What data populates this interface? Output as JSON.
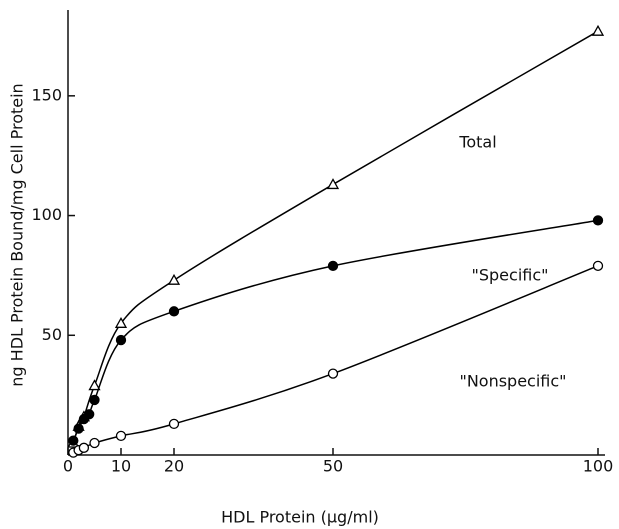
{
  "chart_data": {
    "type": "line",
    "x_label": "HDL Protein (μg/ml)",
    "y_label": "ng HDL Protein Bound/mg Cell Protein",
    "xlim": [
      0,
      100
    ],
    "ylim": [
      0,
      180
    ],
    "xticks": [
      0,
      10,
      20,
      50,
      100
    ],
    "yticks": [
      50,
      100,
      150
    ],
    "series": [
      {
        "name": "Total",
        "color": "#000000",
        "marker": "open-triangle",
        "x": [
          1,
          2,
          3,
          5,
          10,
          20,
          50,
          100
        ],
        "values": [
          5,
          12,
          16,
          29,
          55,
          73,
          113,
          177
        ]
      },
      {
        "name": "\"Specific\"",
        "color": "#000000",
        "marker": "filled-circle",
        "x": [
          1,
          2,
          3,
          4,
          5,
          10,
          20,
          50,
          100
        ],
        "values": [
          6,
          11,
          15,
          17,
          23,
          48,
          60,
          79,
          98
        ]
      },
      {
        "name": "\"Nonspecific\"",
        "color": "#000000",
        "marker": "open-circle",
        "x": [
          1,
          2,
          3,
          5,
          10,
          20,
          50,
          100
        ],
        "values": [
          1,
          2,
          3,
          5,
          8,
          13,
          34,
          79
        ]
      }
    ]
  }
}
